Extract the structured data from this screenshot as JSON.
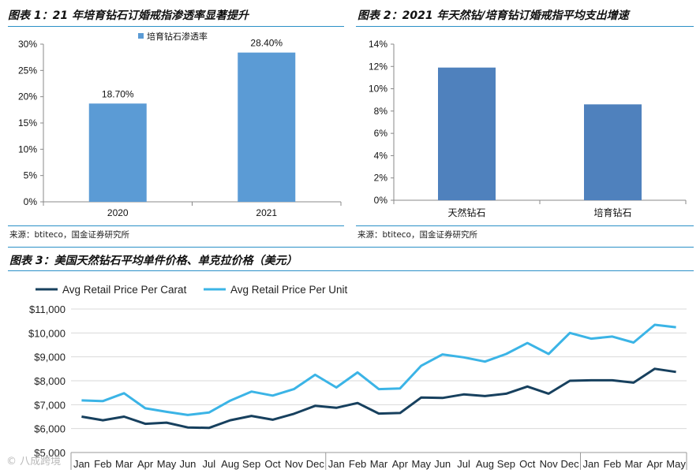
{
  "chart_data": [
    {
      "type": "bar",
      "title": "图表 1：21 年培育钻石订婚戒指渗透率显著提升",
      "categories": [
        "2020",
        "2021"
      ],
      "series": [
        {
          "name": "培育钻石渗透率",
          "values": [
            18.7,
            28.4
          ]
        }
      ],
      "data_labels": [
        "18.70%",
        "28.40%"
      ],
      "ylim": [
        0,
        30
      ],
      "yticks": [
        "0%",
        "5%",
        "10%",
        "15%",
        "20%",
        "25%",
        "30%"
      ],
      "legend": "top-left",
      "grid": false,
      "color": "#5b9bd5",
      "source": "来源：btiteco，国金证券研究所"
    },
    {
      "type": "bar",
      "title": "图表 2：2021 年天然钻/培育钻订婚戒指平均支出增速",
      "categories": [
        "天然钻石",
        "培育钻石"
      ],
      "values": [
        11.9,
        8.6
      ],
      "ylim": [
        0,
        14
      ],
      "yticks": [
        "0%",
        "2%",
        "4%",
        "6%",
        "8%",
        "10%",
        "12%",
        "14%"
      ],
      "grid": false,
      "color": "#4f81bd",
      "source": "来源：btiteco，国金证券研究所"
    },
    {
      "type": "line",
      "title": "图表 3：美国天然钻石平均单件价格、单克拉价格（美元）",
      "x": [
        "Jan",
        "Feb",
        "Mar",
        "Apr",
        "May",
        "Jun",
        "Jul",
        "Aug",
        "Sep",
        "Oct",
        "Nov",
        "Dec",
        "Jan",
        "Feb",
        "Mar",
        "Apr",
        "May",
        "Jun",
        "Jul",
        "Aug",
        "Sep",
        "Oct",
        "Nov",
        "Dec",
        "Jan",
        "Feb",
        "Mar",
        "Apr",
        "May"
      ],
      "series": [
        {
          "name": "Avg Retail Price Per Carat",
          "color": "#17405e",
          "values": [
            6500,
            6350,
            6500,
            6200,
            6250,
            6050,
            6030,
            6350,
            6530,
            6370,
            6620,
            6950,
            6870,
            7070,
            6630,
            6650,
            7300,
            7280,
            7430,
            7360,
            7460,
            7760,
            7460,
            8000,
            8020,
            8020,
            7920,
            8500,
            8370
          ]
        },
        {
          "name": "Avg Retail Price Per Unit",
          "color": "#3bb4e6",
          "values": [
            7180,
            7150,
            7480,
            6850,
            6700,
            6570,
            6670,
            7170,
            7550,
            7380,
            7650,
            8250,
            7720,
            8350,
            7650,
            7680,
            8630,
            9100,
            8980,
            8800,
            9120,
            9580,
            9120,
            10000,
            9760,
            9850,
            9600,
            10340,
            10240
          ]
        }
      ],
      "ylim": [
        5000,
        11000
      ],
      "yticks": [
        "$5,000",
        "$6,000",
        "$7,000",
        "$8,000",
        "$9,000",
        "$10,000",
        "$11,000"
      ],
      "legend": "top-left",
      "grid": true
    }
  ],
  "watermark": "© 八成跨境"
}
